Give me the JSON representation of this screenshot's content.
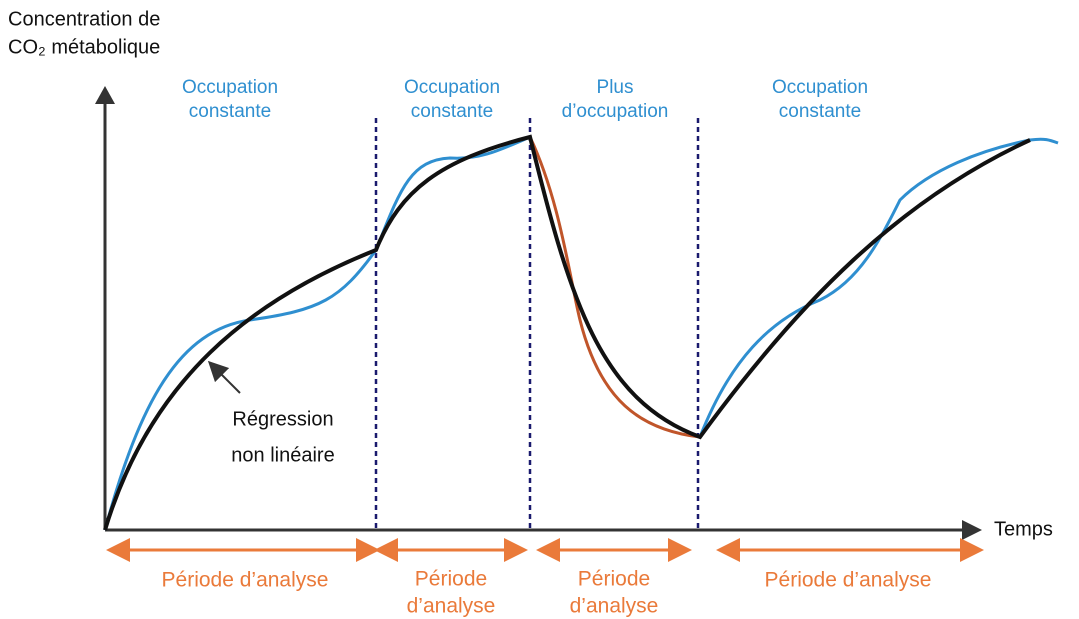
{
  "axes": {
    "y_label": [
      "Concentration de",
      "CO₂ métabolique"
    ],
    "x_label": "Temps"
  },
  "segments": [
    {
      "top": [
        "Occupation",
        "constante"
      ],
      "bottom": [
        "Période d’analyse"
      ]
    },
    {
      "top": [
        "Occupation",
        "constante"
      ],
      "bottom": [
        "Période",
        "d’analyse"
      ]
    },
    {
      "top": [
        "Plus",
        "d’occupation"
      ],
      "bottom": [
        "Période",
        "d’analyse"
      ]
    },
    {
      "top": [
        "Occupation",
        "constante"
      ],
      "bottom": [
        "Période d’analyse"
      ]
    }
  ],
  "annotation": [
    "Régression",
    "non linéaire"
  ]
}
